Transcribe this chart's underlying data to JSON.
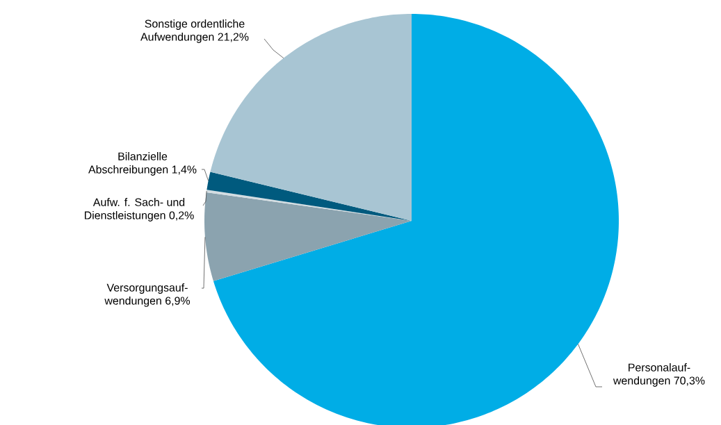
{
  "chart_data": {
    "type": "pie",
    "categories": [
      "Personalauf- wendungen",
      "Versorgungsauf- wendungen",
      "Aufw. f. Sach- und Dienstleistungen",
      "Bilanzielle Abschreibungen",
      "Sonstige ordentliche Aufwendungen"
    ],
    "values": [
      70.3,
      6.9,
      0.2,
      1.4,
      21.2
    ],
    "value_labels": [
      "70,3%",
      "6,9%",
      "0,2%",
      "1,4%",
      "21,2%"
    ],
    "colors": [
      "#00ade6",
      "#8ba3af",
      "#d3dde2",
      "#005a7e",
      "#a8c5d3"
    ]
  }
}
